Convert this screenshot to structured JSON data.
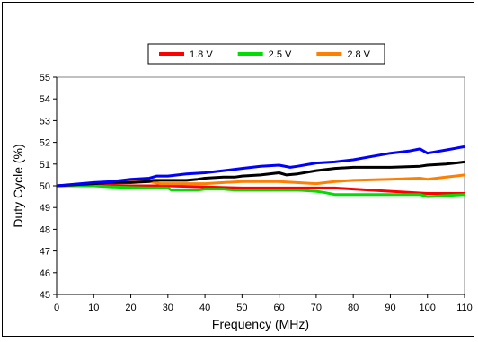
{
  "chart_data": {
    "type": "line",
    "title": "",
    "xlabel": "Frequency (MHz)",
    "ylabel": "Duty Cycle (%)",
    "xlim": [
      0,
      110
    ],
    "ylim": [
      45,
      55
    ],
    "xticks": [
      0,
      10,
      20,
      30,
      40,
      50,
      60,
      70,
      80,
      90,
      100,
      110
    ],
    "yticks": [
      45,
      46,
      47,
      48,
      49,
      50,
      51,
      52,
      53,
      54,
      55
    ],
    "grid": false,
    "legend_position": "top-center",
    "series": [
      {
        "name": "1.8 V",
        "color": "#ff0000",
        "x": [
          0,
          10,
          20,
          25,
          30,
          40,
          50,
          60,
          70,
          75,
          80,
          90,
          100,
          110
        ],
        "y": [
          50.0,
          50.05,
          50.0,
          50.0,
          50.0,
          49.95,
          49.9,
          49.9,
          49.9,
          49.9,
          49.85,
          49.75,
          49.65,
          49.65
        ]
      },
      {
        "name": "2.5 V",
        "color": "#00dd00",
        "x": [
          0,
          10,
          15,
          20,
          25,
          30,
          31,
          35,
          38,
          40,
          45,
          48,
          50,
          55,
          60,
          65,
          70,
          72,
          75,
          80,
          85,
          90,
          95,
          98,
          100,
          105,
          110
        ],
        "y": [
          50.0,
          50.0,
          49.95,
          49.92,
          49.9,
          49.9,
          49.8,
          49.8,
          49.8,
          49.85,
          49.85,
          49.8,
          49.8,
          49.8,
          49.8,
          49.8,
          49.75,
          49.7,
          49.6,
          49.6,
          49.6,
          49.6,
          49.6,
          49.6,
          49.5,
          49.55,
          49.6
        ]
      },
      {
        "name": "2.8 V",
        "color": "#ff7f00",
        "x": [
          0,
          10,
          20,
          25,
          28,
          30,
          40,
          50,
          60,
          70,
          75,
          80,
          90,
          98,
          100,
          105,
          110
        ],
        "y": [
          50.0,
          50.1,
          50.2,
          50.2,
          50.1,
          50.1,
          50.1,
          50.2,
          50.2,
          50.1,
          50.2,
          50.25,
          50.3,
          50.35,
          50.3,
          50.4,
          50.5
        ]
      },
      {
        "name": "",
        "color": "#000000",
        "x": [
          0,
          5,
          10,
          15,
          20,
          25,
          26,
          30,
          35,
          38,
          40,
          45,
          48,
          50,
          55,
          60,
          62,
          65,
          70,
          75,
          80,
          90,
          98,
          100,
          105,
          110
        ],
        "y": [
          50.0,
          50.05,
          50.1,
          50.15,
          50.15,
          50.2,
          50.25,
          50.25,
          50.25,
          50.3,
          50.35,
          50.4,
          50.4,
          50.45,
          50.5,
          50.6,
          50.5,
          50.55,
          50.7,
          50.8,
          50.85,
          50.85,
          50.9,
          50.95,
          51.0,
          51.1
        ]
      },
      {
        "name": "",
        "color": "#0000ff",
        "x": [
          0,
          10,
          15,
          20,
          25,
          27,
          30,
          35,
          40,
          45,
          50,
          55,
          60,
          63,
          65,
          70,
          75,
          80,
          85,
          90,
          95,
          98,
          100,
          105,
          110
        ],
        "y": [
          50.0,
          50.15,
          50.2,
          50.3,
          50.35,
          50.45,
          50.45,
          50.55,
          50.6,
          50.7,
          50.8,
          50.9,
          50.95,
          50.85,
          50.9,
          51.05,
          51.1,
          51.2,
          51.35,
          51.5,
          51.6,
          51.7,
          51.5,
          51.65,
          51.8
        ]
      }
    ]
  }
}
